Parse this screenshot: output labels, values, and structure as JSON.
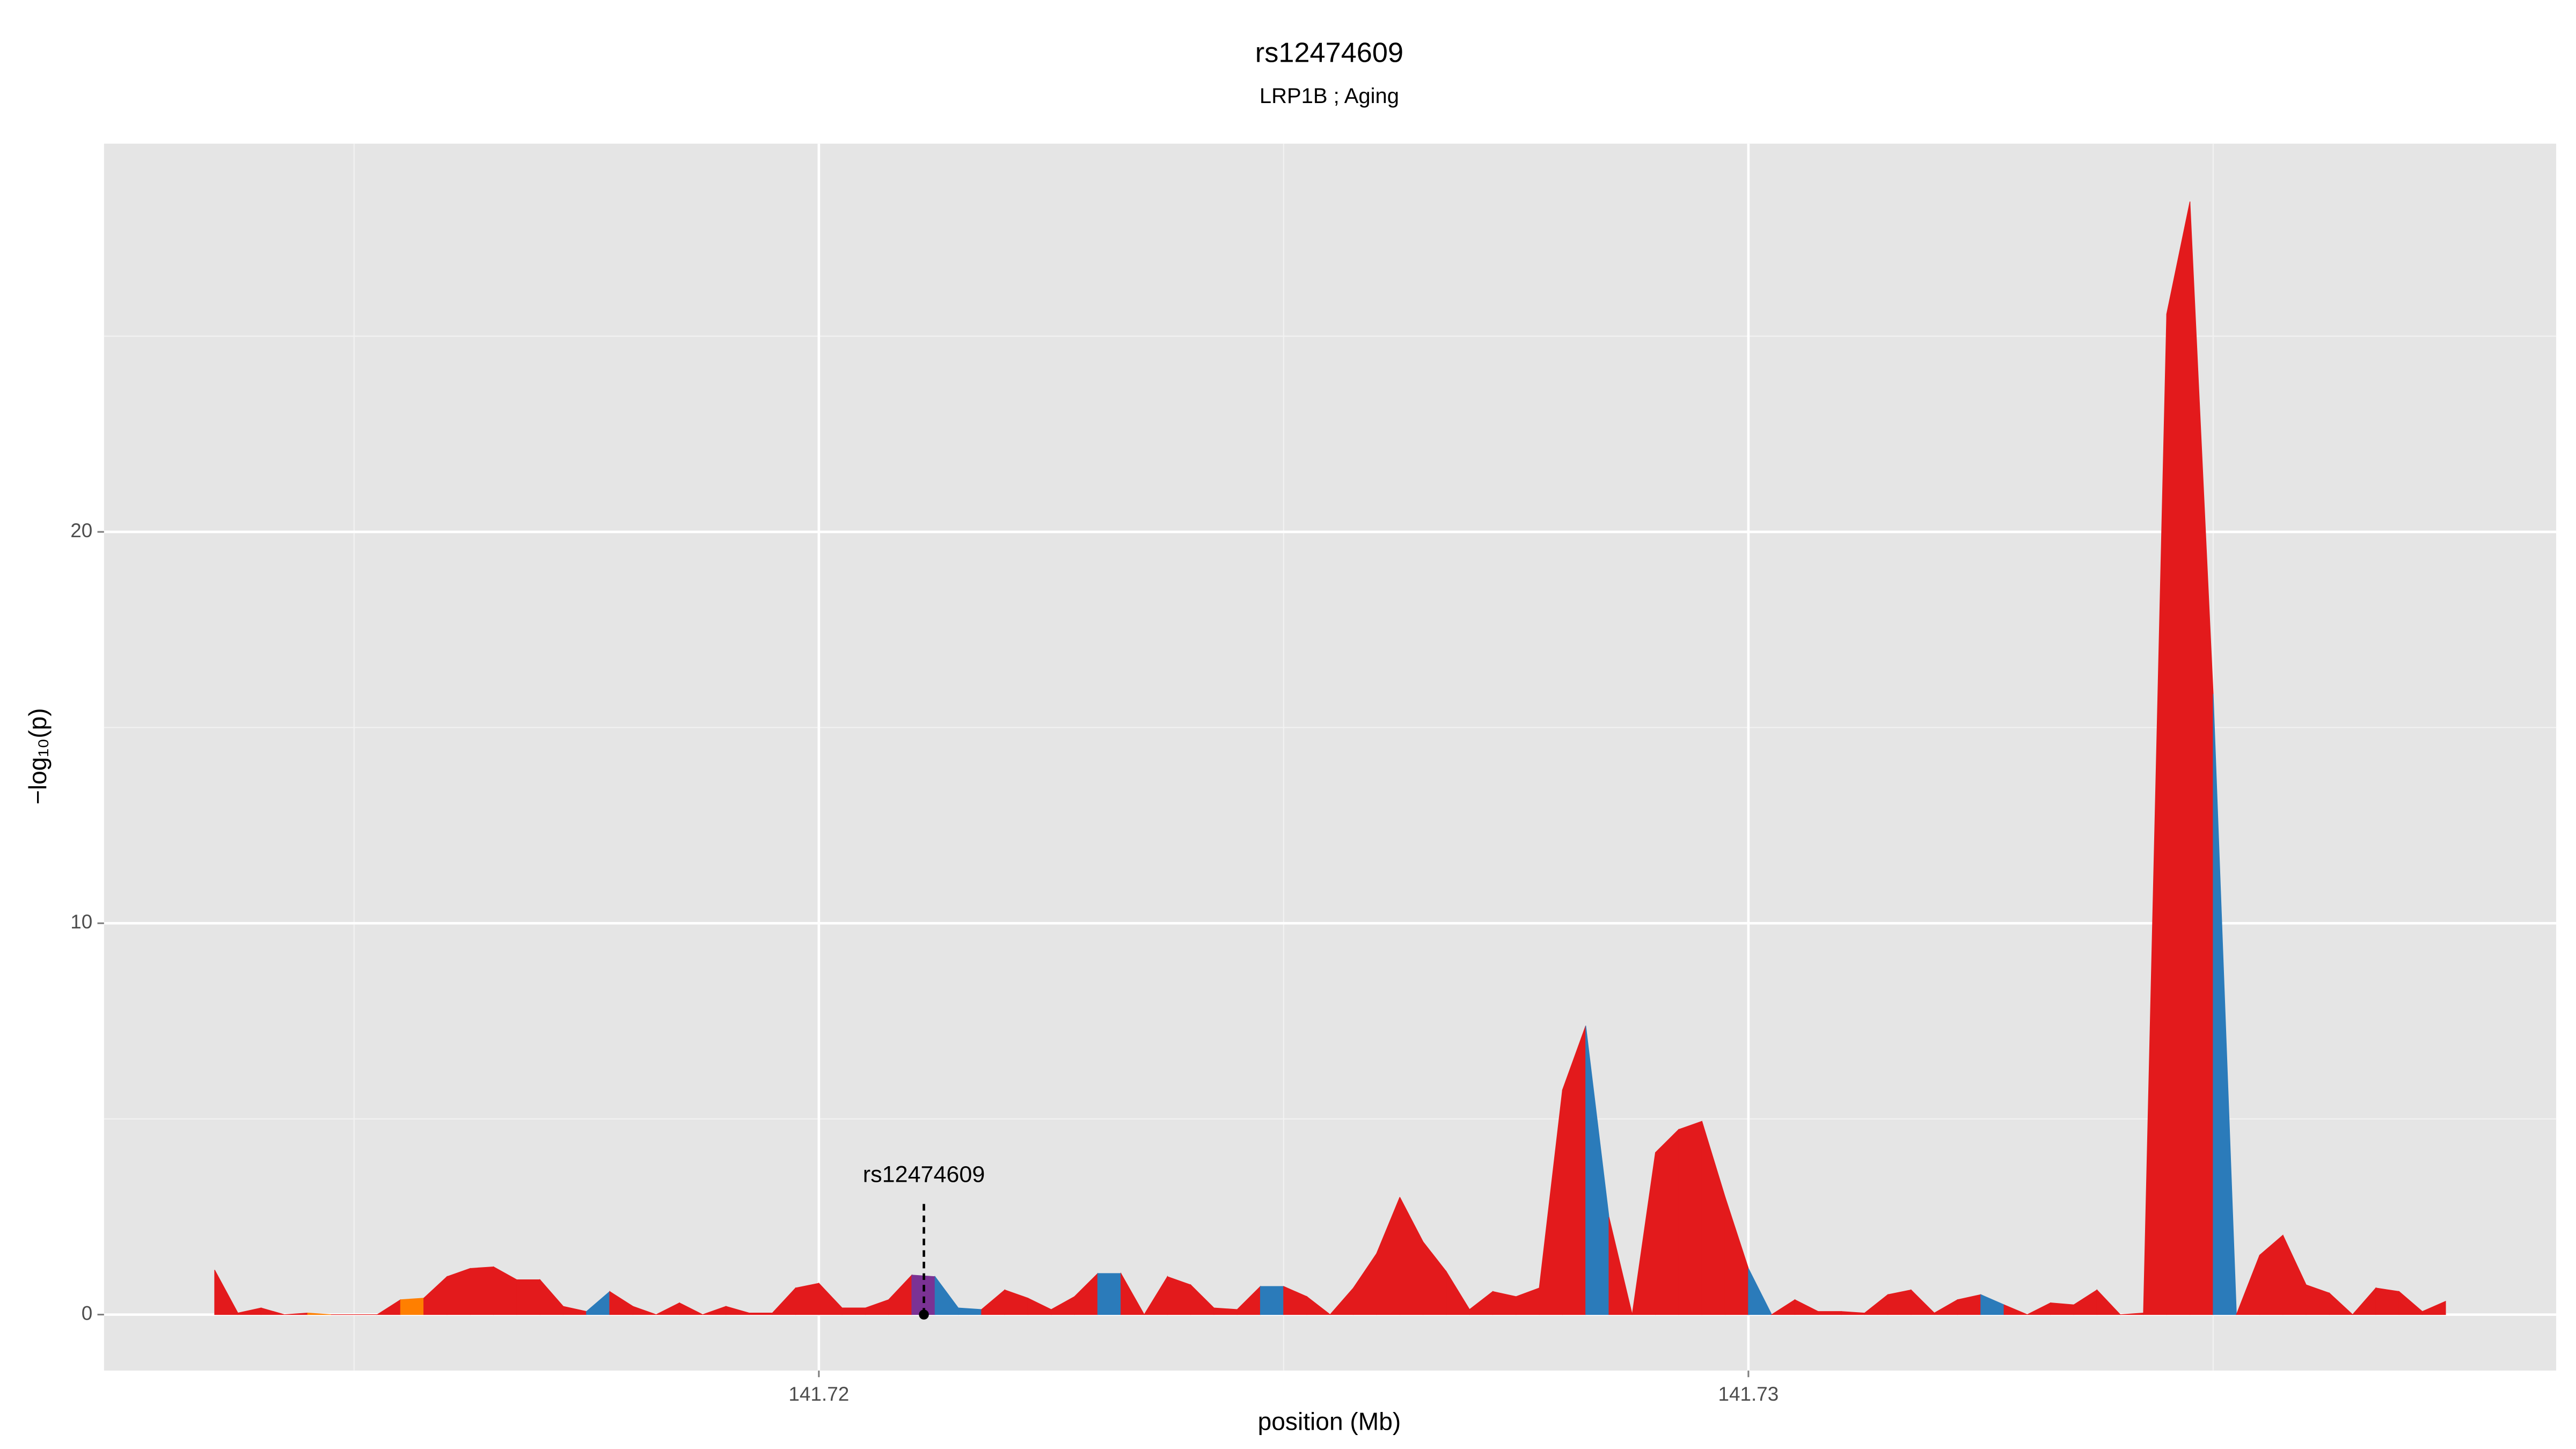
{
  "chart_data": {
    "type": "area",
    "title": "rs12474609",
    "subtitle": "LRP1B ; Aging",
    "x_label": "position (Mb)",
    "y_label": "−log₁₀(p)",
    "xlim": [
      141.71231,
      141.73869
    ],
    "ylim": [
      -1.43,
      29.92
    ],
    "xticks": [
      141.72,
      141.73
    ],
    "yticks": [
      0,
      10,
      20
    ],
    "grid": true,
    "x": [
      141.7135,
      141.71375,
      141.714,
      141.71425,
      141.7145,
      141.71475,
      141.715,
      141.71525,
      141.7155,
      141.71575,
      141.716,
      141.71625,
      141.7165,
      141.71675,
      141.717,
      141.71725,
      141.7175,
      141.71775,
      141.718,
      141.71825,
      141.7185,
      141.71875,
      141.719,
      141.71925,
      141.7195,
      141.71975,
      141.72,
      141.72025,
      141.7205,
      141.72075,
      141.721,
      141.72125,
      141.7215,
      141.72175,
      141.722,
      141.72225,
      141.7225,
      141.72275,
      141.723,
      141.72325,
      141.7235,
      141.72375,
      141.724,
      141.72425,
      141.7245,
      141.72475,
      141.725,
      141.72525,
      141.7255,
      141.72575,
      141.726,
      141.72625,
      141.7265,
      141.72675,
      141.727,
      141.72725,
      141.7275,
      141.72775,
      141.728,
      141.72825,
      141.7285,
      141.72875,
      141.729,
      141.72925,
      141.7295,
      141.72975,
      141.73,
      141.73025,
      141.7305,
      141.73075,
      141.731,
      141.73125,
      141.7315,
      141.73175,
      141.732,
      141.73225,
      141.7325,
      141.73275,
      141.733,
      141.73325,
      141.7335,
      141.73375,
      141.734,
      141.73425,
      141.7345,
      141.73475,
      141.735,
      141.73525,
      141.7355,
      141.73575,
      141.736,
      141.73625,
      141.7365,
      141.73675,
      141.737,
      141.73725,
      141.7375
    ],
    "values": [
      1.14,
      0.04,
      0.17,
      0,
      0.04,
      0,
      0,
      0,
      0.38,
      0.42,
      0.97,
      1.18,
      1.22,
      0.89,
      0.89,
      0.21,
      0.08,
      0.59,
      0.21,
      0,
      0.3,
      0,
      0.21,
      0.04,
      0.04,
      0.68,
      0.8,
      0.17,
      0.17,
      0.38,
      1.01,
      0.97,
      0.17,
      0.13,
      0.63,
      0.42,
      0.13,
      0.46,
      1.05,
      1.05,
      0,
      0.97,
      0.76,
      0.17,
      0.13,
      0.72,
      0.72,
      0.46,
      0,
      0.68,
      1.56,
      3.0,
      1.86,
      1.1,
      0.13,
      0.59,
      0.46,
      0.68,
      5.74,
      7.38,
      2.49,
      0,
      4.14,
      4.73,
      4.94,
      3.0,
      1.18,
      0,
      0.38,
      0.08,
      0.08,
      0.04,
      0.51,
      0.63,
      0.04,
      0.38,
      0.51,
      0.25,
      0,
      0.3,
      0.25,
      0.63,
      0,
      0.04,
      25.57,
      28.44,
      15.86,
      0,
      1.52,
      2.03,
      0.76,
      0.55,
      0,
      0.68,
      0.59,
      0.08,
      0.34
    ],
    "segment_colors": [
      "#e31a1c",
      "#e31a1c",
      "#e31a1c",
      "#e31a1c",
      "#ff7f00",
      "#e31a1c",
      "#e31a1c",
      "#e31a1c",
      "#ff7f00",
      "#e31a1c",
      "#e31a1c",
      "#e31a1c",
      "#e31a1c",
      "#e31a1c",
      "#e31a1c",
      "#e31a1c",
      "#2b7bba",
      "#e31a1c",
      "#e31a1c",
      "#e31a1c",
      "#e31a1c",
      "#e31a1c",
      "#e31a1c",
      "#e31a1c",
      "#e31a1c",
      "#e31a1c",
      "#e31a1c",
      "#e31a1c",
      "#e31a1c",
      "#e31a1c",
      "#7b3294",
      "#2b7bba",
      "#2b7bba",
      "#e31a1c",
      "#e31a1c",
      "#e31a1c",
      "#e31a1c",
      "#e31a1c",
      "#2b7bba",
      "#e31a1c",
      "#e31a1c",
      "#e31a1c",
      "#e31a1c",
      "#e31a1c",
      "#e31a1c",
      "#2b7bba",
      "#e31a1c",
      "#e31a1c",
      "#e31a1c",
      "#e31a1c",
      "#e31a1c",
      "#e31a1c",
      "#e31a1c",
      "#e31a1c",
      "#e31a1c",
      "#e31a1c",
      "#e31a1c",
      "#e31a1c",
      "#e31a1c",
      "#2b7bba",
      "#e31a1c",
      "#e31a1c",
      "#e31a1c",
      "#e31a1c",
      "#e31a1c",
      "#e31a1c",
      "#2b7bba",
      "#e31a1c",
      "#e31a1c",
      "#e31a1c",
      "#e31a1c",
      "#e31a1c",
      "#e31a1c",
      "#e31a1c",
      "#e31a1c",
      "#e31a1c",
      "#2b7bba",
      "#e31a1c",
      "#e31a1c",
      "#e31a1c",
      "#e31a1c",
      "#e31a1c",
      "#e31a1c",
      "#e31a1c",
      "#e31a1c",
      "#e31a1c",
      "#2b7bba",
      "#e31a1c",
      "#e31a1c",
      "#e31a1c",
      "#e31a1c",
      "#e31a1c",
      "#e31a1c",
      "#e31a1c",
      "#e31a1c",
      "#e31a1c"
    ],
    "highlight": {
      "label": "rs12474609",
      "x": 141.72113,
      "y": 0
    }
  }
}
